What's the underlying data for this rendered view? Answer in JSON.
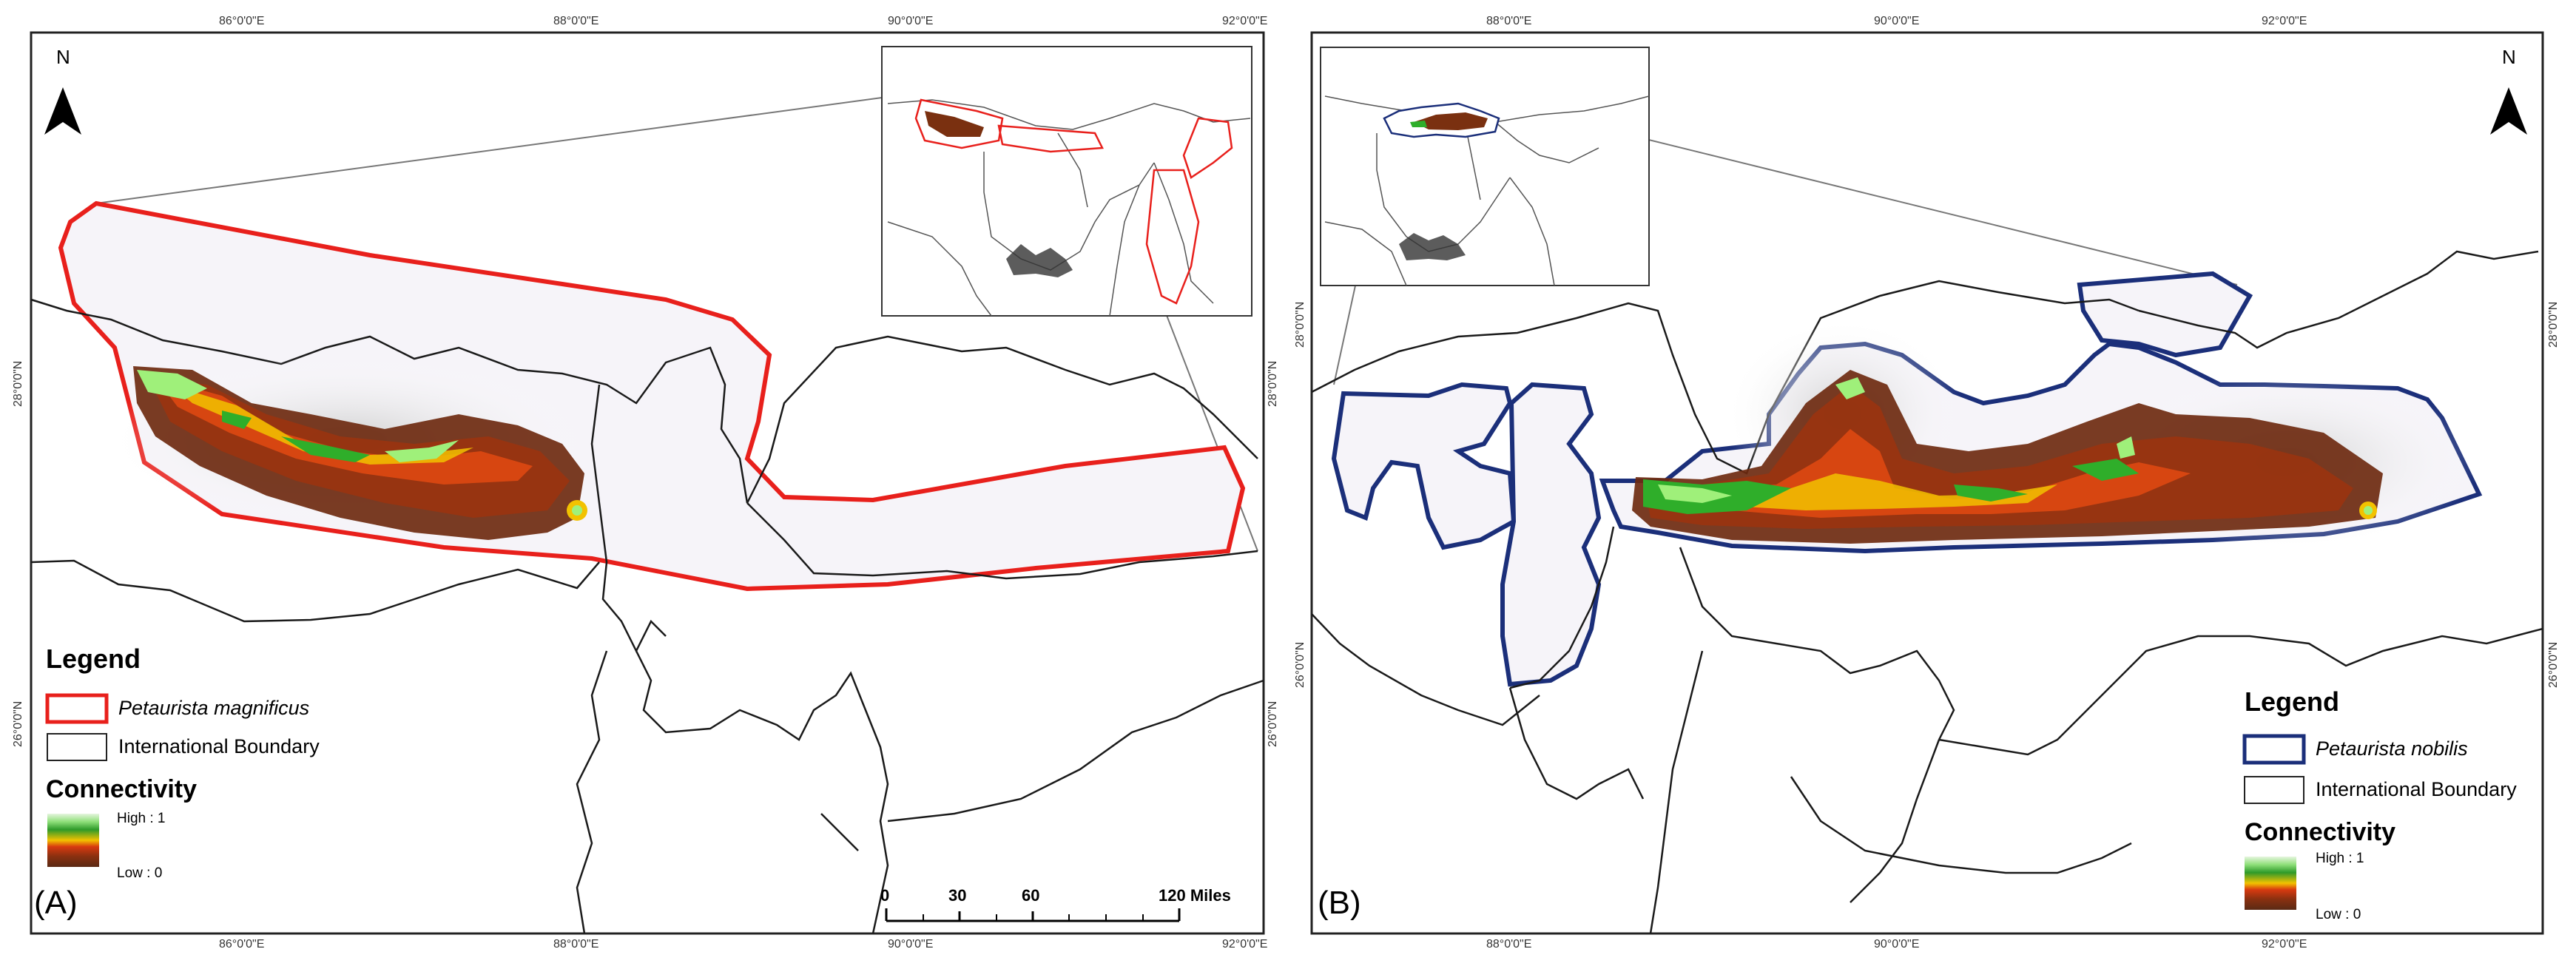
{
  "panels": [
    {
      "label": "(A)",
      "north": "N",
      "coords_top": [
        "86°0'0\"E",
        "88°0'0\"E",
        "90°0'0\"E",
        "92°0'0\"E"
      ],
      "coords_bottom": [
        "86°0'0\"E",
        "88°0'0\"E",
        "90°0'0\"E",
        "92°0'0\"E"
      ],
      "coords_left": [
        "28°0'0\"N",
        "26°0'0\"N"
      ],
      "coords_right": [
        "28°0'0\"N",
        "26°0'0\"N"
      ],
      "legend": {
        "title": "Legend",
        "species": "Petaurista magnificus",
        "boundary": "International Boundary",
        "connectivity_title": "Connectivity",
        "high": "High : 1",
        "low": "Low : 0"
      },
      "scalebar": {
        "ticks": [
          "0",
          "30",
          "60",
          "120 Miles"
        ]
      },
      "colors": {
        "range_outline": "#e8201c"
      }
    },
    {
      "label": "(B)",
      "north": "N",
      "coords_top": [
        "88°0'0\"E",
        "90°0'0\"E",
        "92°0'0\"E"
      ],
      "coords_bottom": [
        "88°0'0\"E",
        "90°0'0\"E",
        "92°0'0\"E"
      ],
      "coords_left": [
        "28°0'0\"N",
        "26°0'0\"N"
      ],
      "coords_right": [
        "28°0'0\"N",
        "26°0'0\"N"
      ],
      "legend": {
        "title": "Legend",
        "species": "Petaurista nobilis",
        "boundary": "International Boundary",
        "connectivity_title": "Connectivity",
        "high": "High : 1",
        "low": "Low : 0"
      },
      "colors": {
        "range_outline": "#1b2f7a"
      }
    }
  ]
}
